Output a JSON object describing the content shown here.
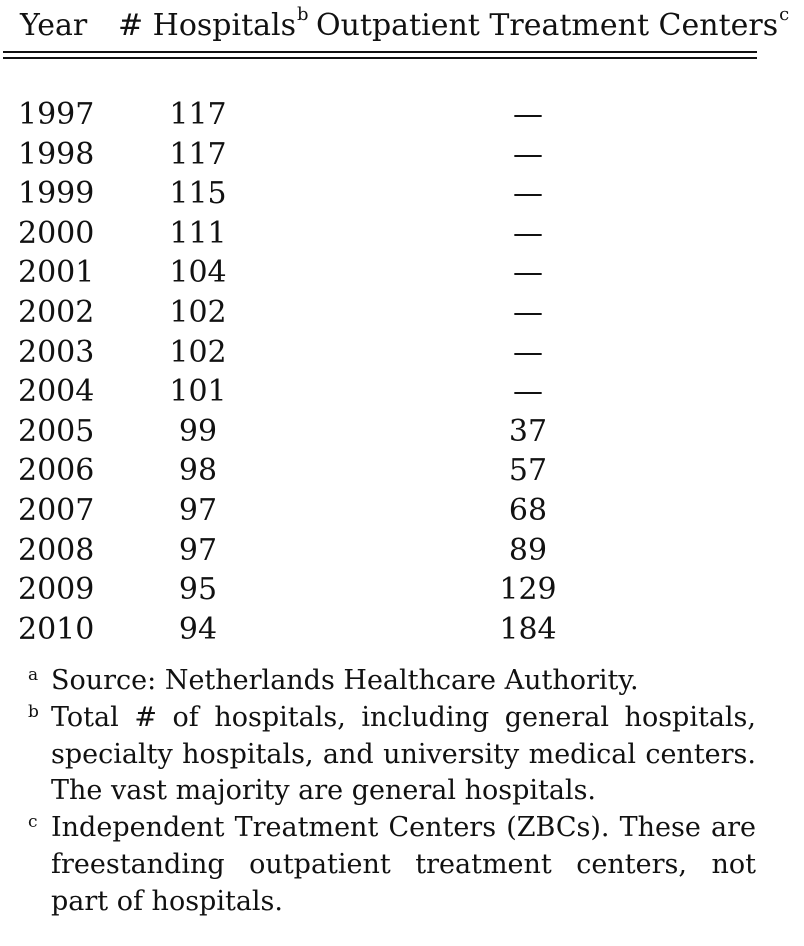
{
  "header": {
    "year": "Year",
    "hospitals": "# Hospitals",
    "hospitals_mark": "b",
    "outpatient": "Outpatient Treatment Centers",
    "outpatient_mark": "c"
  },
  "rows": [
    {
      "year": "1997",
      "hospitals": "117",
      "centers": "—"
    },
    {
      "year": "1998",
      "hospitals": "117",
      "centers": "—"
    },
    {
      "year": "1999",
      "hospitals": "115",
      "centers": "—"
    },
    {
      "year": "2000",
      "hospitals": "111",
      "centers": "—"
    },
    {
      "year": "2001",
      "hospitals": "104",
      "centers": "—"
    },
    {
      "year": "2002",
      "hospitals": "102",
      "centers": "—"
    },
    {
      "year": "2003",
      "hospitals": "102",
      "centers": "—"
    },
    {
      "year": "2004",
      "hospitals": "101",
      "centers": "—"
    },
    {
      "year": "2005",
      "hospitals": "99",
      "centers": "37"
    },
    {
      "year": "2006",
      "hospitals": "98",
      "centers": "57"
    },
    {
      "year": "2007",
      "hospitals": "97",
      "centers": "68"
    },
    {
      "year": "2008",
      "hospitals": "97",
      "centers": "89"
    },
    {
      "year": "2009",
      "hospitals": "95",
      "centers": "129"
    },
    {
      "year": "2010",
      "hospitals": "94",
      "centers": "184"
    }
  ],
  "notes": [
    {
      "mark": "a",
      "text": "Source: Netherlands Healthcare Authority."
    },
    {
      "mark": "b",
      "text": "Total # of hospitals, including general hospitals, specialty hospitals, and university medical centers. The vast majority are general hospitals."
    },
    {
      "mark": "c",
      "text": "Independent Treatment Centers (ZBCs). These are freestanding outpatient treatment centers, not part of hospitals."
    }
  ]
}
